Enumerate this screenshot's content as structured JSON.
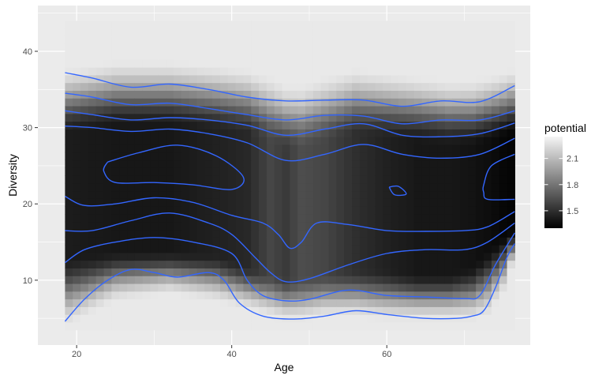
{
  "chart_data": {
    "type": "heatmap",
    "xlabel": "Age",
    "ylabel": "Diversity",
    "xlim": [
      15,
      78.5
    ],
    "ylim": [
      1.5,
      46
    ],
    "x_ticks": [
      20,
      40,
      60
    ],
    "y_ticks": [
      10,
      20,
      30,
      40
    ],
    "grid": true,
    "data_extent": {
      "x": [
        18.5,
        76.5
      ],
      "y": [
        3.5,
        44
      ]
    },
    "fill_scale": {
      "name": "potential",
      "range": [
        1.3,
        2.35
      ],
      "low_color": "#000000",
      "high_color": "#f5f5f5",
      "breaks": [
        1.5,
        1.8,
        2.1
      ]
    },
    "legend_position": "right",
    "background_profile": {
      "x": [
        18.5,
        25,
        32,
        38,
        42,
        45,
        47,
        49,
        52,
        56,
        60,
        64,
        68,
        71,
        73,
        75,
        76.5
      ],
      "low_edge": [
        3.5,
        7,
        8,
        7,
        6,
        5,
        4.5,
        4.5,
        5,
        5,
        4.5,
        4.5,
        4.5,
        4.5,
        5,
        8,
        13
      ],
      "dark_top": [
        29,
        30,
        30,
        29.5,
        29,
        28,
        27,
        27,
        28,
        29,
        28.5,
        28,
        27.5,
        27.5,
        28,
        28.5,
        29
      ],
      "dark_bottom": [
        13,
        14,
        14,
        13.5,
        12,
        11,
        10.5,
        10.5,
        11,
        11.5,
        11.5,
        11,
        11,
        12,
        14,
        16,
        17
      ],
      "base_potential": [
        1.42,
        1.4,
        1.4,
        1.44,
        1.47,
        1.6,
        1.55,
        1.63,
        1.6,
        1.5,
        1.44,
        1.4,
        1.4,
        1.38,
        1.36,
        1.33,
        1.32
      ]
    },
    "contour_color": "#3366ff",
    "contours": [
      {
        "x": [
          18.5,
          22,
          27,
          32,
          37,
          42,
          47,
          52,
          57,
          62,
          67,
          72,
          76.5
        ],
        "y": [
          37.2,
          36.5,
          35.3,
          35.7,
          35,
          34,
          33.5,
          33.6,
          33.6,
          32.8,
          33.5,
          33.4,
          35.5
        ]
      },
      {
        "x": [
          18.5,
          22,
          27,
          32,
          37,
          42,
          47,
          52,
          57,
          62,
          67,
          72,
          76.5
        ],
        "y": [
          34.5,
          34,
          33,
          33.2,
          32.5,
          31.7,
          31,
          31.6,
          31.5,
          30.5,
          31,
          31,
          32.2
        ]
      },
      {
        "x": [
          18.5,
          22,
          27,
          32,
          37,
          42,
          47,
          52,
          57,
          62,
          67,
          72,
          76.5
        ],
        "y": [
          32.2,
          31.7,
          31,
          31.3,
          31,
          30.3,
          29,
          29.8,
          30.5,
          29,
          28.8,
          29.2,
          30.6
        ]
      },
      {
        "x": [
          18.5,
          22,
          27,
          32,
          37,
          42,
          47,
          52,
          57,
          62,
          67,
          72,
          76.5
        ],
        "y": [
          30.2,
          30,
          29.5,
          29.8,
          29.2,
          28,
          25.7,
          26.5,
          27.8,
          26.5,
          26,
          26.5,
          28.6
        ]
      },
      {
        "x": [
          18.5,
          21,
          25,
          30,
          35,
          40,
          44,
          46,
          47.5,
          49,
          51,
          55,
          60,
          65,
          70,
          73,
          76.5
        ],
        "y": [
          21,
          19.8,
          20,
          20.8,
          20.2,
          18.5,
          17.5,
          16,
          14.2,
          15,
          17.5,
          17.3,
          16.5,
          16.4,
          16.5,
          17,
          19
        ]
      },
      {
        "x": [
          18.5,
          22,
          27,
          32,
          37,
          40,
          43,
          45,
          47,
          50,
          55,
          60,
          65,
          70,
          73,
          76.5
        ],
        "y": [
          16.5,
          16.5,
          17.8,
          18.8,
          17.5,
          16,
          13,
          11,
          9.8,
          10.2,
          12,
          13.5,
          14,
          14,
          15,
          17.5
        ]
      },
      {
        "x": [
          18.5,
          21,
          25,
          30,
          35,
          40,
          42,
          44,
          47,
          50,
          55,
          60,
          65,
          70,
          72,
          74,
          76.5
        ],
        "y": [
          12.3,
          14,
          15,
          15.6,
          15,
          13.5,
          10,
          8,
          7.3,
          7.5,
          8.7,
          8,
          7.8,
          7.6,
          8,
          12,
          16.2
        ]
      },
      {
        "x": [
          18.5,
          21,
          24,
          27,
          30,
          33,
          37,
          39,
          41,
          44,
          48,
          52,
          56,
          60,
          65,
          69,
          71,
          72.5,
          74,
          75.5,
          76.5
        ],
        "y": [
          4.6,
          7.5,
          10,
          11.4,
          11,
          10.4,
          11,
          10,
          7,
          5.3,
          4.9,
          5.3,
          6,
          5.5,
          5,
          5,
          5.3,
          6,
          9,
          13,
          14.8
        ]
      }
    ],
    "contour_loops": [
      {
        "x": [
          24,
          28,
          33,
          38,
          41.5,
          40,
          35,
          30,
          25,
          23.5,
          24
        ],
        "y": [
          25.5,
          26.7,
          27.7,
          26.3,
          23.5,
          21.9,
          22.5,
          22.8,
          22.8,
          24.3,
          25.5
        ]
      },
      {
        "x": [
          60.3,
          61.5,
          62.5,
          61,
          60.3
        ],
        "y": [
          22.2,
          22.3,
          21.3,
          21.2,
          22.2
        ]
      },
      {
        "x": [
          76.5,
          73.5,
          72.5,
          72.5,
          73,
          76.5
        ],
        "y": [
          26.5,
          25,
          22.5,
          21.5,
          20.6,
          20.6
        ]
      }
    ]
  }
}
